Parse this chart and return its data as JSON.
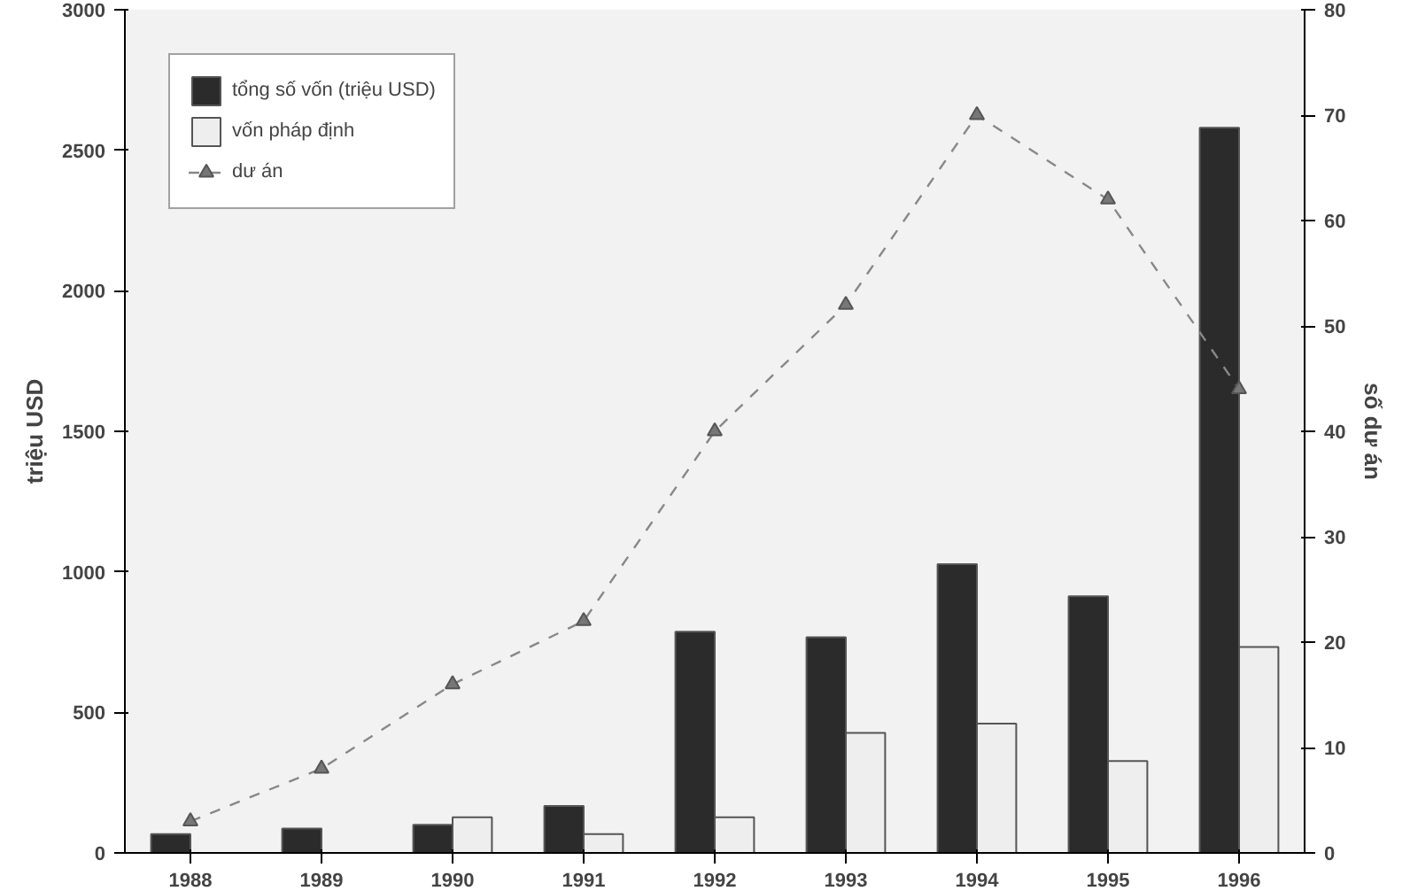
{
  "chart_data": {
    "type": "bar",
    "categories": [
      "1988",
      "1989",
      "1990",
      "1991",
      "1992",
      "1993",
      "1994",
      "1995",
      "1996"
    ],
    "series": [
      {
        "name": "tổng số vốn (triệu USD)",
        "color": "#2b2b2b",
        "values": [
          67,
          87,
          100,
          167,
          787,
          767,
          1027,
          913,
          2580
        ]
      },
      {
        "name": "vốn pháp định",
        "color": "#eeeeee",
        "values": [
          null,
          null,
          127,
          67,
          127,
          427,
          460,
          327,
          733
        ]
      },
      {
        "name": "dư án",
        "type": "line",
        "axis": "y2",
        "color": "#888888",
        "values": [
          3,
          8,
          16,
          22,
          40,
          52,
          70,
          62,
          44
        ]
      }
    ],
    "ylabel": "triệu USD",
    "y2label": "số dư án",
    "ylim": [
      0,
      3000
    ],
    "yticks": [
      0,
      500,
      1000,
      1500,
      2000,
      2500,
      3000
    ],
    "y2lim": [
      0,
      80
    ],
    "y2ticks": [
      0,
      10,
      20,
      30,
      40,
      50,
      60,
      70,
      80
    ],
    "marker": "triangle",
    "line_style": "dashed",
    "legend": "top left",
    "grid": false
  }
}
